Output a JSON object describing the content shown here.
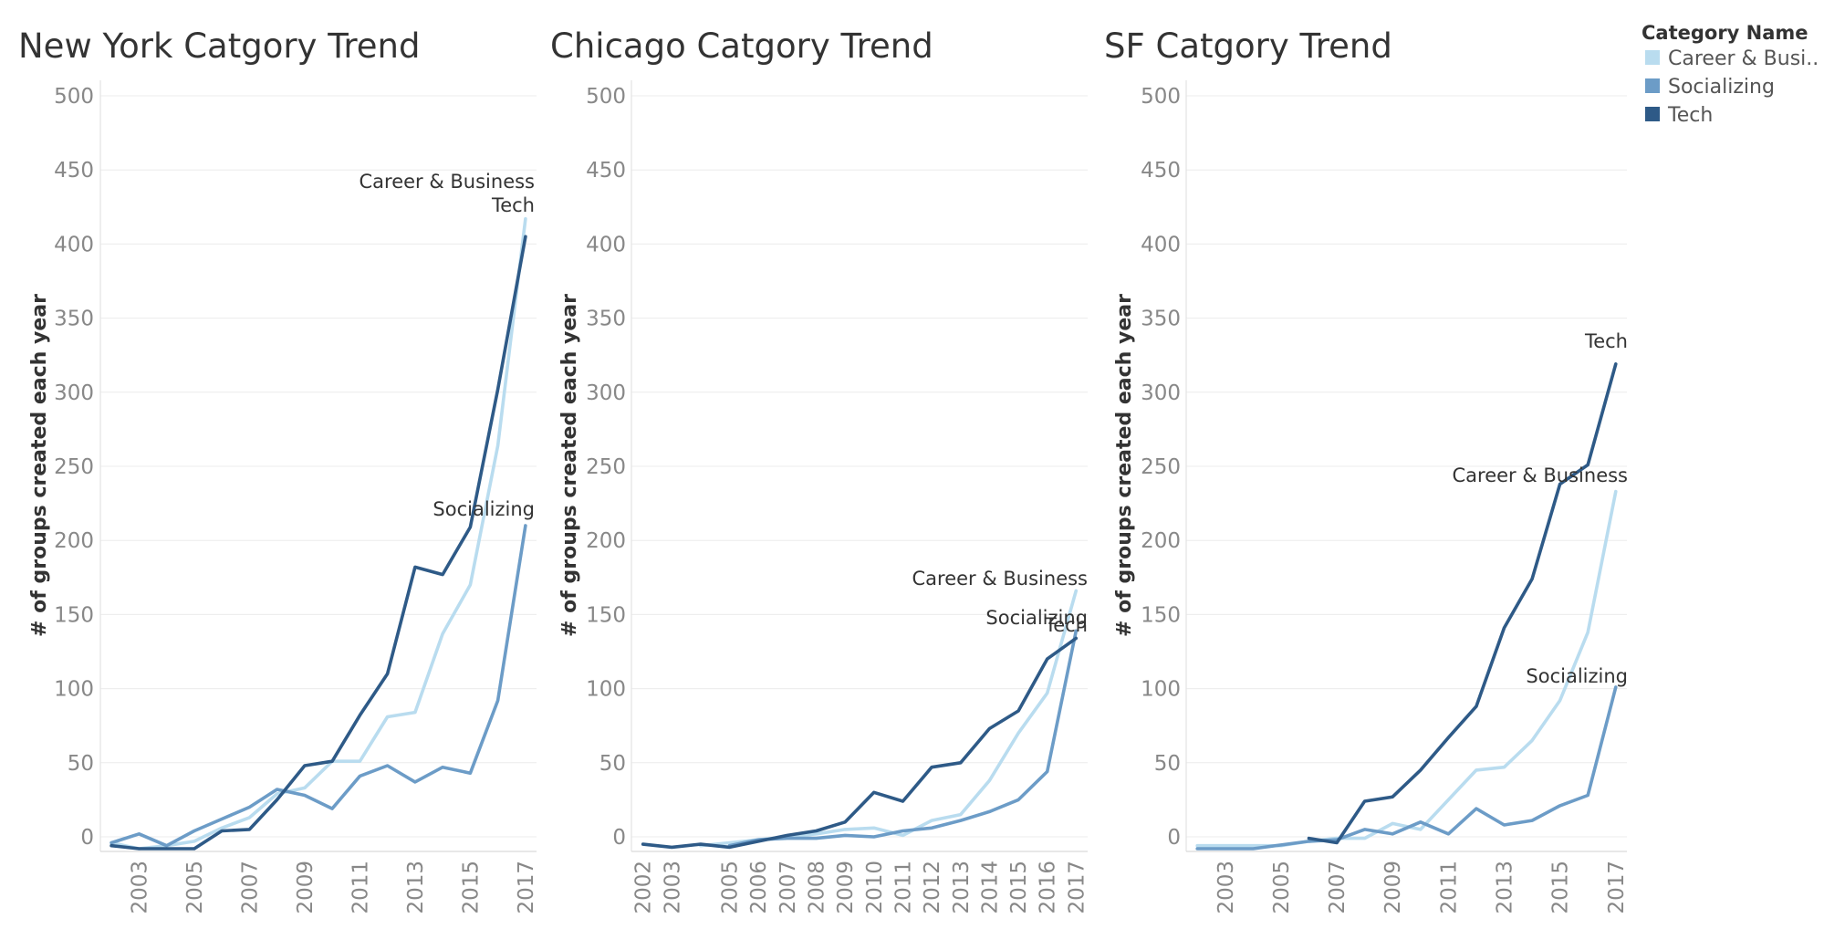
{
  "legend": {
    "title": "Category Name",
    "items": [
      {
        "label": "Career & Busi..",
        "color": "#b9dcef"
      },
      {
        "label": "Socializing",
        "color": "#6c9cc7"
      },
      {
        "label": "Tech",
        "color": "#2e5a87"
      }
    ]
  },
  "chart_data": [
    {
      "type": "line",
      "title": "New York Catgory Trend",
      "ylabel": "# of groups created each year",
      "xlabel": "",
      "ylim": [
        -8,
        510
      ],
      "yticks": [
        0,
        50,
        100,
        150,
        200,
        250,
        300,
        350,
        400,
        450,
        500
      ],
      "xlim": [
        2001.6,
        2017.4
      ],
      "x_tick_labels": [
        "2003",
        "2005",
        "2007",
        "2009",
        "2011",
        "2013",
        "2015",
        "2017"
      ],
      "series": [
        {
          "name": "Career & Business",
          "color": "#b9dcef",
          "label_text": "Career & Business",
          "x": [
            2002,
            2003,
            2004,
            2005,
            2006,
            2007,
            2008,
            2009,
            2010,
            2011,
            2012,
            2013,
            2014,
            2015,
            2016,
            2017
          ],
          "values": [
            -4,
            -8,
            -6,
            -3,
            6,
            13,
            29,
            33,
            51,
            51,
            81,
            84,
            137,
            170,
            264,
            417
          ]
        },
        {
          "name": "Socializing",
          "color": "#6c9cc7",
          "label_text": "Socializing",
          "x": [
            2002,
            2003,
            2004,
            2005,
            2006,
            2007,
            2008,
            2009,
            2010,
            2011,
            2012,
            2013,
            2014,
            2015,
            2016,
            2017
          ],
          "values": [
            -4,
            2,
            -6,
            4,
            12,
            20,
            32,
            28,
            19,
            41,
            48,
            37,
            47,
            43,
            92,
            210
          ]
        },
        {
          "name": "Tech",
          "color": "#2e5a87",
          "label_text": "Tech",
          "x": [
            2002,
            2003,
            2004,
            2005,
            2006,
            2007,
            2008,
            2009,
            2010,
            2011,
            2012,
            2013,
            2014,
            2015,
            2016,
            2017
          ],
          "values": [
            -6,
            -8,
            -8,
            -8,
            4,
            5,
            25,
            48,
            51,
            82,
            110,
            182,
            177,
            209,
            302,
            405
          ]
        }
      ]
    },
    {
      "type": "line",
      "title": "Chicago Catgory Trend",
      "ylabel": "# of groups created each year",
      "xlabel": "",
      "ylim": [
        -8,
        510
      ],
      "yticks": [
        0,
        50,
        100,
        150,
        200,
        250,
        300,
        350,
        400,
        450,
        500
      ],
      "xlim": [
        2001.6,
        2017.4
      ],
      "x_tick_labels": [
        "2002",
        "2003",
        "2005",
        "2006",
        "2007",
        "2008",
        "2009",
        "2010",
        "2011",
        "2012",
        "2013",
        "2014",
        "2015",
        "2016",
        "2017"
      ],
      "series": [
        {
          "name": "Career & Business",
          "color": "#b9dcef",
          "label_text": "Career & Business",
          "x": [
            2004,
            2005,
            2006,
            2007,
            2008,
            2009,
            2010,
            2011,
            2012,
            2013,
            2014,
            2015,
            2016,
            2017
          ],
          "values": [
            -6,
            -4,
            -2,
            0,
            2,
            5,
            6,
            1,
            11,
            15,
            38,
            70,
            97,
            166
          ]
        },
        {
          "name": "Socializing",
          "color": "#6c9cc7",
          "label_text": "Socializing",
          "x": [
            2005,
            2006,
            2007,
            2008,
            2009,
            2010,
            2011,
            2012,
            2013,
            2014,
            2015,
            2016,
            2017
          ],
          "values": [
            -6,
            -2,
            -1,
            -1,
            1,
            0,
            4,
            6,
            11,
            17,
            25,
            44,
            139
          ]
        },
        {
          "name": "Tech",
          "color": "#2e5a87",
          "label_text": "Tech",
          "x": [
            2002,
            2003,
            2004,
            2005,
            2006,
            2007,
            2008,
            2009,
            2010,
            2011,
            2012,
            2013,
            2014,
            2015,
            2016,
            2017
          ],
          "values": [
            -5,
            -7,
            -5,
            -7,
            -3,
            1,
            4,
            10,
            30,
            24,
            47,
            50,
            73,
            85,
            120,
            134
          ]
        }
      ]
    },
    {
      "type": "line",
      "title": "SF Catgory Trend",
      "ylabel": "# of groups created each year",
      "xlabel": "",
      "ylim": [
        -8,
        510
      ],
      "yticks": [
        0,
        50,
        100,
        150,
        200,
        250,
        300,
        350,
        400,
        450,
        500
      ],
      "xlim": [
        2001.6,
        2017.4
      ],
      "x_tick_labels": [
        "2003",
        "2005",
        "2007",
        "2009",
        "2011",
        "2013",
        "2015",
        "2017"
      ],
      "series": [
        {
          "name": "Career & Business",
          "color": "#b9dcef",
          "label_text": "Career & Business",
          "x": [
            2002,
            2003,
            2004,
            2005,
            2006,
            2007,
            2008,
            2009,
            2010,
            2011,
            2012,
            2013,
            2014,
            2015,
            2016,
            2017
          ],
          "values": [
            -6,
            -6,
            -6,
            -6,
            -3,
            -1,
            -1,
            9,
            5,
            25,
            45,
            47,
            65,
            92,
            138,
            233
          ]
        },
        {
          "name": "Socializing",
          "color": "#6c9cc7",
          "label_text": "Socializing",
          "x": [
            2002,
            2003,
            2004,
            2006,
            2007,
            2008,
            2009,
            2010,
            2011,
            2012,
            2013,
            2014,
            2015,
            2016,
            2017
          ],
          "values": [
            -8,
            -8,
            -8,
            -3,
            -2,
            5,
            2,
            10,
            2,
            19,
            8,
            11,
            21,
            28,
            101
          ]
        },
        {
          "name": "Tech",
          "color": "#2e5a87",
          "label_text": "Tech",
          "x": [
            2006,
            2007,
            2008,
            2009,
            2010,
            2011,
            2012,
            2013,
            2014,
            2015,
            2016,
            2017
          ],
          "values": [
            -1,
            -4,
            24,
            27,
            45,
            67,
            88,
            141,
            174,
            238,
            251,
            319
          ]
        }
      ]
    }
  ]
}
